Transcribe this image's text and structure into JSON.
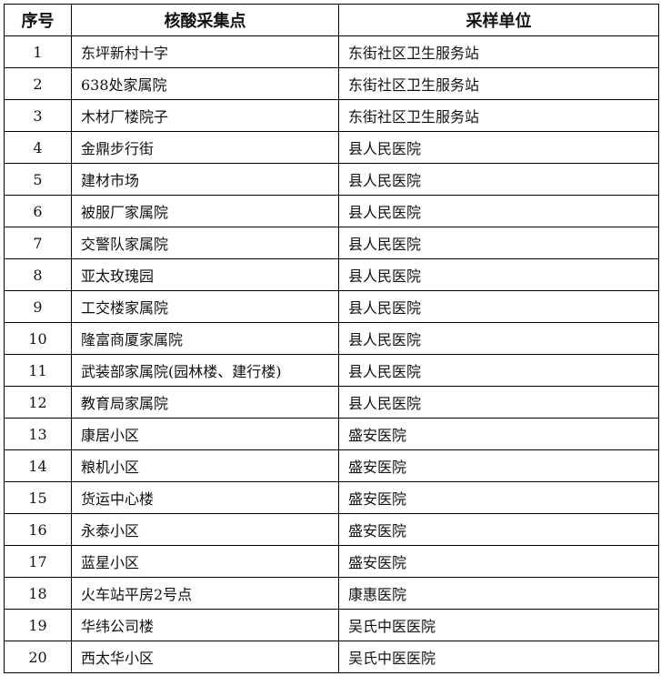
{
  "table": {
    "header": [
      "序号",
      "核酸采集点",
      "采样单位"
    ],
    "rows": [
      [
        "1",
        "东坪新村十字",
        "东街社区卫生服务站"
      ],
      [
        "2",
        "638处家属院",
        "东街社区卫生服务站"
      ],
      [
        "3",
        "木材厂楼院子",
        "东街社区卫生服务站"
      ],
      [
        "4",
        "金鼎步行街",
        "县人民医院"
      ],
      [
        "5",
        "建材市场",
        "县人民医院"
      ],
      [
        "6",
        "被服厂家属院",
        "县人民医院"
      ],
      [
        "7",
        "交警队家属院",
        "县人民医院"
      ],
      [
        "8",
        "亚太玫瑰园",
        "县人民医院"
      ],
      [
        "9",
        "工交楼家属院",
        "县人民医院"
      ],
      [
        "10",
        "隆富商厦家属院",
        "县人民医院"
      ],
      [
        "11",
        "武装部家属院(园林楼、建行楼)",
        "县人民医院"
      ],
      [
        "12",
        "教育局家属院",
        "县人民医院"
      ],
      [
        "13",
        "康居小区",
        "盛安医院"
      ],
      [
        "14",
        "粮机小区",
        "盛安医院"
      ],
      [
        "15",
        "货运中心楼",
        "盛安医院"
      ],
      [
        "16",
        "永泰小区",
        "盛安医院"
      ],
      [
        "17",
        "蓝星小区",
        "盛安医院"
      ],
      [
        "18",
        "火车站平房2号点",
        "康惠医院"
      ],
      [
        "19",
        "华纬公司楼",
        "吴氏中医医院"
      ],
      [
        "20",
        "西太华小区",
        "吴氏中医医院"
      ]
    ]
  }
}
